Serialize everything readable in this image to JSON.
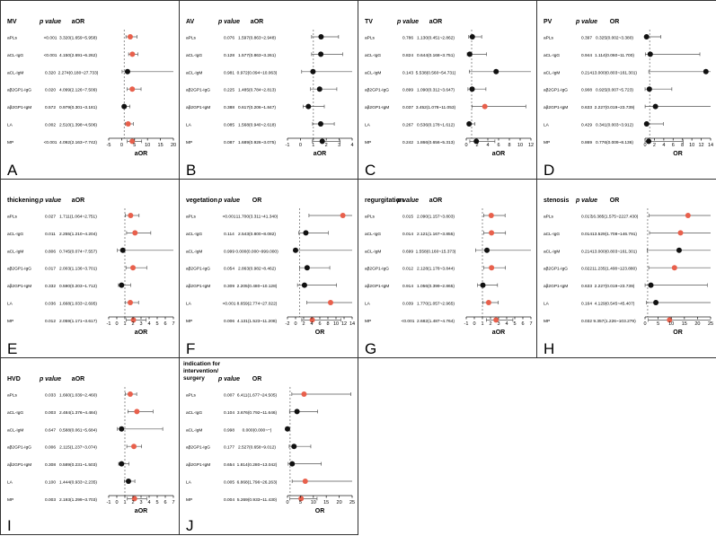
{
  "colors": {
    "significant": "#e8604c",
    "nonsignificant": "#111111",
    "ci_line": "#555555",
    "reference_line": "#777777",
    "border": "#333333"
  },
  "chart_data": [
    {
      "type": "forest",
      "panel_letter": "A",
      "outcome": "MV",
      "p_header": "p value",
      "effect_header": "aOR",
      "xlabel": "aOR",
      "xlim": [
        -5,
        20
      ],
      "xticks": [
        -5,
        0,
        5,
        10,
        15,
        20
      ],
      "reference": 1,
      "rows": [
        {
          "label": "aPLs",
          "p": "<0.001",
          "ci_text": "3.320(1.659~5.958)",
          "or": 3.32,
          "lo": 1.659,
          "hi": 5.958,
          "sig": true
        },
        {
          "label": "aCL-IgG",
          "p": "<0.001",
          "ci_text": "4.150(2.691~6.262)",
          "or": 4.15,
          "lo": 2.691,
          "hi": 6.262,
          "sig": true
        },
        {
          "label": "aCL-IgM",
          "p": "0.320",
          "ci_text": "2.274(0.180~27.733)",
          "or": 2.274,
          "lo": 0.18,
          "hi": 27.733,
          "sig": false
        },
        {
          "label": "aβ2GP1-IgG",
          "p": "0.020",
          "ci_text": "4.099(2.126~7.509)",
          "or": 4.099,
          "lo": 2.126,
          "hi": 7.509,
          "sig": true
        },
        {
          "label": "aβ2GP1-IgM",
          "p": "0.572",
          "ci_text": "0.979(0.301~3.181)",
          "or": 0.979,
          "lo": 0.301,
          "hi": 3.181,
          "sig": false
        },
        {
          "label": "LA",
          "p": "0.002",
          "ci_text": "2.510(1.398~4.506)",
          "or": 2.51,
          "lo": 1.398,
          "hi": 4.506,
          "sig": true
        },
        {
          "label": "MP",
          "p": "<0.001",
          "ci_text": "4.092(2.163~7.742)",
          "or": 4.092,
          "lo": 2.163,
          "hi": 7.742,
          "sig": true
        }
      ]
    },
    {
      "type": "forest",
      "panel_letter": "B",
      "outcome": "AV",
      "p_header": "p value",
      "effect_header": "aOR",
      "xlabel": "aOR",
      "xlim": [
        -1,
        4
      ],
      "xticks": [
        -1,
        0,
        1,
        2,
        3,
        4
      ],
      "reference": 1,
      "rows": [
        {
          "label": "aPLs",
          "p": "0.076",
          "ci_text": "1.597(0.863~2.948)",
          "or": 1.597,
          "lo": 0.863,
          "hi": 2.948,
          "sig": false
        },
        {
          "label": "aCL-IgG",
          "p": "0.128",
          "ci_text": "1.577(0.863~3.261)",
          "or": 1.577,
          "lo": 0.863,
          "hi": 3.261,
          "sig": false
        },
        {
          "label": "aCL-IgM",
          "p": "0.981",
          "ci_text": "0.972(0.094~10.063)",
          "or": 0.972,
          "lo": 0.094,
          "hi": 10.063,
          "sig": false
        },
        {
          "label": "aβ2GP1-IgG",
          "p": "0.225",
          "ci_text": "1.485(0.784~2.813)",
          "or": 1.485,
          "lo": 0.784,
          "hi": 2.813,
          "sig": false
        },
        {
          "label": "aβ2GP1-IgM",
          "p": "0.388",
          "ci_text": "0.617(0.206~1.847)",
          "or": 0.617,
          "lo": 0.206,
          "hi": 1.847,
          "sig": false
        },
        {
          "label": "LA",
          "p": "0.085",
          "ci_text": "1.568(0.940~2.618)",
          "or": 1.568,
          "lo": 0.94,
          "hi": 2.618,
          "sig": false
        },
        {
          "label": "MP",
          "p": "0.087",
          "ci_text": "1.689(0.926~3.075)",
          "or": 1.689,
          "lo": 0.926,
          "hi": 3.075,
          "sig": false
        }
      ]
    },
    {
      "type": "forest",
      "panel_letter": "C",
      "outcome": "TV",
      "p_header": "p value",
      "effect_header": "aOR",
      "xlabel": "aOR",
      "xlim": [
        0,
        12
      ],
      "xticks": [
        0,
        2,
        4,
        6,
        8,
        10,
        12
      ],
      "reference": 1,
      "rows": [
        {
          "label": "aPLs",
          "p": "0.786",
          "ci_text": "1.130(0.451~2.862)",
          "or": 1.13,
          "lo": 0.451,
          "hi": 2.862,
          "sig": false
        },
        {
          "label": "aCL-IgG",
          "p": "0.824",
          "ci_text": "0.644(0.168~3.751)",
          "or": 0.644,
          "lo": 0.168,
          "hi": 3.751,
          "sig": false
        },
        {
          "label": "aCL-IgM",
          "p": "0.143",
          "ci_text": "5.538(0.560~54.731)",
          "or": 5.538,
          "lo": 0.56,
          "hi": 54.731,
          "sig": false
        },
        {
          "label": "aβ2GP1-IgG",
          "p": "0.899",
          "ci_text": "1.090(0.312~3.647)",
          "or": 1.09,
          "lo": 0.312,
          "hi": 3.647,
          "sig": false
        },
        {
          "label": "aβ2GP1-IgM",
          "p": "0.037",
          "ci_text": "3.452(1.078~11.053)",
          "or": 3.452,
          "lo": 1.078,
          "hi": 11.053,
          "sig": true
        },
        {
          "label": "LA",
          "p": "0.267",
          "ci_text": "0.536(0.178~1.612)",
          "or": 0.536,
          "lo": 0.178,
          "hi": 1.612,
          "sig": false
        },
        {
          "label": "MP",
          "p": "0.242",
          "ci_text": "1.866(0.656~5.313)",
          "or": 1.866,
          "lo": 0.656,
          "hi": 5.313,
          "sig": false
        }
      ]
    },
    {
      "type": "forest",
      "panel_letter": "D",
      "outcome": "PV",
      "p_header": "p value",
      "effect_header": "OR",
      "xlabel": "OR",
      "xlim": [
        0,
        14
      ],
      "xticks": [
        0,
        2,
        4,
        6,
        8,
        10,
        12,
        14
      ],
      "reference": 1,
      "rows": [
        {
          "label": "aPLs",
          "p": "0.397",
          "ci_text": "0.325(0.002~3.380)",
          "or": 0.325,
          "lo": 0.002,
          "hi": 3.38,
          "sig": false
        },
        {
          "label": "aCL-IgG",
          "p": "0.944",
          "ci_text": "1.114(0.060~11.700)",
          "or": 1.114,
          "lo": 0.06,
          "hi": 11.7,
          "sig": false
        },
        {
          "label": "aCL-IgM",
          "p": "0.214",
          "ci_text": "13.000(0.803~161.301)",
          "or": 13.0,
          "lo": 0.803,
          "hi": 161.301,
          "sig": false
        },
        {
          "label": "aβ2GP1-IgG",
          "p": "0.908",
          "ci_text": "0.925(0.007~5.723)",
          "or": 0.925,
          "lo": 0.007,
          "hi": 5.723,
          "sig": false
        },
        {
          "label": "aβ2GP1-IgM",
          "p": "0.633",
          "ci_text": "2.227(0.019~23.739)",
          "or": 2.227,
          "lo": 0.019,
          "hi": 23.739,
          "sig": false
        },
        {
          "label": "LA",
          "p": "0.429",
          "ci_text": "0.341(0.003~3.912)",
          "or": 0.341,
          "lo": 0.003,
          "hi": 3.912,
          "sig": false
        },
        {
          "label": "MP",
          "p": "0.869",
          "ci_text": "0.776(0.009~8.136)",
          "or": 0.776,
          "lo": 0.009,
          "hi": 8.136,
          "sig": false
        }
      ]
    },
    {
      "type": "forest",
      "panel_letter": "E",
      "outcome": "thickening",
      "p_header": "p value",
      "effect_header": "aOR",
      "xlabel": "aOR",
      "xlim": [
        -1,
        7
      ],
      "xticks": [
        -1,
        0,
        1,
        2,
        3,
        4,
        5,
        6,
        7
      ],
      "reference": 1,
      "rows": [
        {
          "label": "aPLs",
          "p": "0.027",
          "ci_text": "1.711(1.064~2.751)",
          "or": 1.711,
          "lo": 1.064,
          "hi": 2.751,
          "sig": true
        },
        {
          "label": "aCL-IgG",
          "p": "0.011",
          "ci_text": "2.255(1.210~4.204)",
          "or": 2.255,
          "lo": 1.21,
          "hi": 4.204,
          "sig": true
        },
        {
          "label": "aCL-IgM",
          "p": "0.806",
          "ci_text": "0.745(0.074~7.557)",
          "or": 0.745,
          "lo": 0.074,
          "hi": 7.557,
          "sig": false
        },
        {
          "label": "aβ2GP1-IgG",
          "p": "0.017",
          "ci_text": "2.003(1.136~3.701)",
          "or": 2.003,
          "lo": 1.136,
          "hi": 3.701,
          "sig": true
        },
        {
          "label": "aβ2GP1-IgM",
          "p": "0.332",
          "ci_text": "0.590(0.203~1.712)",
          "or": 0.59,
          "lo": 0.203,
          "hi": 1.712,
          "sig": false
        },
        {
          "label": "LA",
          "p": "0.036",
          "ci_text": "1.668(1.033~2.695)",
          "or": 1.668,
          "lo": 1.033,
          "hi": 2.695,
          "sig": true
        },
        {
          "label": "MP",
          "p": "0.012",
          "ci_text": "2.059(1.171~3.617)",
          "or": 2.059,
          "lo": 1.171,
          "hi": 3.617,
          "sig": true
        }
      ]
    },
    {
      "type": "forest",
      "panel_letter": "F",
      "outcome": "vegetation",
      "p_header": "p value",
      "effect_header": "OR",
      "xlabel": "OR",
      "xlim": [
        -2,
        14
      ],
      "xticks": [
        -2,
        0,
        2,
        4,
        6,
        8,
        10,
        12,
        14
      ],
      "reference": 1,
      "rows": [
        {
          "label": "aPLs",
          "p": "<0.001",
          "ci_text": "11.700(3.311~41.340)",
          "or": 11.7,
          "lo": 3.311,
          "hi": 41.34,
          "sig": true
        },
        {
          "label": "aCL-IgG",
          "p": "0.114",
          "ci_text": "2.543(0.800~8.082)",
          "or": 2.543,
          "lo": 0.8,
          "hi": 8.082,
          "sig": false
        },
        {
          "label": "aCL-IgM",
          "p": "0.999",
          "ci_text": "0.000(0.000~999.000)",
          "or": 0.0,
          "lo": 0.0,
          "hi": 999.0,
          "sig": false
        },
        {
          "label": "aβ2GP1-IgG",
          "p": "0.054",
          "ci_text": "2.863(0.982~8.462)",
          "or": 2.863,
          "lo": 0.982,
          "hi": 8.462,
          "sig": false
        },
        {
          "label": "aβ2GP1-IgM",
          "p": "0.309",
          "ci_text": "2.205(0.480~10.128)",
          "or": 2.205,
          "lo": 0.48,
          "hi": 10.128,
          "sig": false
        },
        {
          "label": "LA",
          "p": "<0.001",
          "ci_text": "8.659(2.774~27.022)",
          "or": 8.659,
          "lo": 2.774,
          "hi": 27.022,
          "sig": true
        },
        {
          "label": "MP",
          "p": "0.006",
          "ci_text": "4.131(1.523~11.208)",
          "or": 4.131,
          "lo": 1.523,
          "hi": 11.208,
          "sig": true
        }
      ]
    },
    {
      "type": "forest",
      "panel_letter": "G",
      "outcome": "regurgitation",
      "p_header": "p value",
      "effect_header": "aOR",
      "xlabel": "aOR",
      "xlim": [
        -1,
        7
      ],
      "xticks": [
        -1,
        0,
        1,
        2,
        3,
        4,
        5,
        6,
        7
      ],
      "reference": 1,
      "rows": [
        {
          "label": "aPLs",
          "p": "0.015",
          "ci_text": "2.090(1.157~3.803)",
          "or": 2.09,
          "lo": 1.157,
          "hi": 3.803,
          "sig": true
        },
        {
          "label": "aCL-IgG",
          "p": "0.014",
          "ci_text": "2.121(1.167~3.855)",
          "or": 2.121,
          "lo": 1.167,
          "hi": 3.855,
          "sig": true
        },
        {
          "label": "aCL-IgM",
          "p": "0.699",
          "ci_text": "1.558(0.160~15.373)",
          "or": 1.558,
          "lo": 0.16,
          "hi": 15.373,
          "sig": false
        },
        {
          "label": "aβ2GP1-IgG",
          "p": "0.012",
          "ci_text": "2.128(1.178~3.844)",
          "or": 2.128,
          "lo": 1.178,
          "hi": 3.844,
          "sig": true
        },
        {
          "label": "aβ2GP1-IgM",
          "p": "0.914",
          "ci_text": "1.056(0.399~2.865)",
          "or": 1.056,
          "lo": 0.399,
          "hi": 2.865,
          "sig": false
        },
        {
          "label": "LA",
          "p": "0.039",
          "ci_text": "1.770(1.057~2.965)",
          "or": 1.77,
          "lo": 1.057,
          "hi": 2.965,
          "sig": true
        },
        {
          "label": "MP",
          "p": "<0.001",
          "ci_text": "2.682(1.487~4.764)",
          "or": 2.682,
          "lo": 1.487,
          "hi": 4.764,
          "sig": true
        }
      ]
    },
    {
      "type": "forest",
      "panel_letter": "H",
      "outcome": "stenosis",
      "p_header": "p value",
      "effect_header": "OR",
      "xlabel": "OR",
      "xlim": [
        0,
        25
      ],
      "xticks": [
        0,
        5,
        10,
        15,
        20,
        25
      ],
      "reference": 1,
      "rows": [
        {
          "label": "aPLs",
          "p": "0.017",
          "ci_text": "16.385(1.575~2227.430)",
          "or": 16.385,
          "lo": 1.575,
          "hi": 2227.43,
          "sig": true
        },
        {
          "label": "aCL-IgG",
          "p": "0.014",
          "ci_text": "13.529(1.708~146.791)",
          "or": 13.529,
          "lo": 1.708,
          "hi": 146.791,
          "sig": true
        },
        {
          "label": "aCL-IgM",
          "p": "0.214",
          "ci_text": "13.000(0.803~161.301)",
          "or": 13.0,
          "lo": 0.803,
          "hi": 161.301,
          "sig": false
        },
        {
          "label": "aβ2GP1-IgG",
          "p": "0.022",
          "ci_text": "11.235(1.408~123.880)",
          "or": 11.235,
          "lo": 1.408,
          "hi": 123.88,
          "sig": true
        },
        {
          "label": "aβ2GP1-IgM",
          "p": "0.633",
          "ci_text": "2.227(0.019~23.739)",
          "or": 2.227,
          "lo": 0.019,
          "hi": 23.739,
          "sig": false
        },
        {
          "label": "LA",
          "p": "0.164",
          "ci_text": "4.129(0.545~45.407)",
          "or": 4.129,
          "lo": 0.545,
          "hi": 45.407,
          "sig": false
        },
        {
          "label": "MP",
          "p": "0.032",
          "ci_text": "9.357(1.226~103.279)",
          "or": 9.357,
          "lo": 1.226,
          "hi": 103.279,
          "sig": true
        }
      ]
    },
    {
      "type": "forest",
      "panel_letter": "I",
      "outcome": "HVD",
      "p_header": "p value",
      "effect_header": "aOR",
      "xlabel": "aOR",
      "xlim": [
        -1,
        7
      ],
      "xticks": [
        -1,
        0,
        1,
        2,
        3,
        4,
        5,
        6,
        7
      ],
      "reference": 1,
      "rows": [
        {
          "label": "aPLs",
          "p": "0.033",
          "ci_text": "1.660(1.039~2.460)",
          "or": 1.66,
          "lo": 1.039,
          "hi": 2.46,
          "sig": true
        },
        {
          "label": "aCL-IgG",
          "p": "0.003",
          "ci_text": "2.484(1.376~4.484)",
          "or": 2.484,
          "lo": 1.376,
          "hi": 4.484,
          "sig": true
        },
        {
          "label": "aCL-IgM",
          "p": "0.647",
          "ci_text": "0.588(0.061~5.684)",
          "or": 0.588,
          "lo": 0.061,
          "hi": 5.684,
          "sig": false
        },
        {
          "label": "aβ2GP1-IgG",
          "p": "0.006",
          "ci_text": "2.115(1.237~3.074)",
          "or": 2.115,
          "lo": 1.237,
          "hi": 3.074,
          "sig": true
        },
        {
          "label": "aβ2GP1-IgM",
          "p": "0.308",
          "ci_text": "0.589(0.231~1.503)",
          "or": 0.589,
          "lo": 0.231,
          "hi": 1.503,
          "sig": false
        },
        {
          "label": "LA",
          "p": "0.100",
          "ci_text": "1.444(0.933~2.235)",
          "or": 1.444,
          "lo": 0.933,
          "hi": 2.235,
          "sig": false
        },
        {
          "label": "MP",
          "p": "0.003",
          "ci_text": "2.193(1.299~3.703)",
          "or": 2.193,
          "lo": 1.299,
          "hi": 3.703,
          "sig": true
        }
      ]
    },
    {
      "type": "forest",
      "panel_letter": "J",
      "outcome": "indication for intervention/ surgery",
      "outcome_lines": [
        "indication for",
        "intervention/",
        "surgery"
      ],
      "p_header": "p value",
      "effect_header": "OR",
      "xlabel": "OR",
      "xlim": [
        0,
        25
      ],
      "xticks": [
        0,
        5,
        10,
        15,
        20,
        25
      ],
      "reference": 1,
      "rows": [
        {
          "label": "aPLs",
          "p": "0.007",
          "ci_text": "6.411(1.677~24.505)",
          "or": 6.411,
          "lo": 1.677,
          "hi": 24.505,
          "sig": true
        },
        {
          "label": "aCL-IgG",
          "p": "0.104",
          "ci_text": "3.676(0.792~11.646)",
          "or": 3.676,
          "lo": 0.792,
          "hi": 11.646,
          "sig": false
        },
        {
          "label": "aCL-IgM",
          "p": "0.998",
          "ci_text": "0.000(0.000~−)",
          "or": 0.0,
          "lo": 0.0,
          "hi": 0.0,
          "sig": false
        },
        {
          "label": "aβ2GP1-IgG",
          "p": "0.177",
          "ci_text": "2.527(0.658~9.012)",
          "or": 2.527,
          "lo": 0.658,
          "hi": 9.012,
          "sig": false
        },
        {
          "label": "aβ2GP1-IgM",
          "p": "0.654",
          "ci_text": "1.814(0.280~13.042)",
          "or": 1.814,
          "lo": 0.28,
          "hi": 13.042,
          "sig": false
        },
        {
          "label": "LA",
          "p": "0.005",
          "ci_text": "6.868(1.796~26.263)",
          "or": 6.868,
          "lo": 1.796,
          "hi": 26.263,
          "sig": true
        },
        {
          "label": "MP",
          "p": "0.004",
          "ci_text": "5.269(0.933~11.430)",
          "or": 5.269,
          "lo": 0.933,
          "hi": 11.43,
          "sig": true
        }
      ]
    }
  ]
}
